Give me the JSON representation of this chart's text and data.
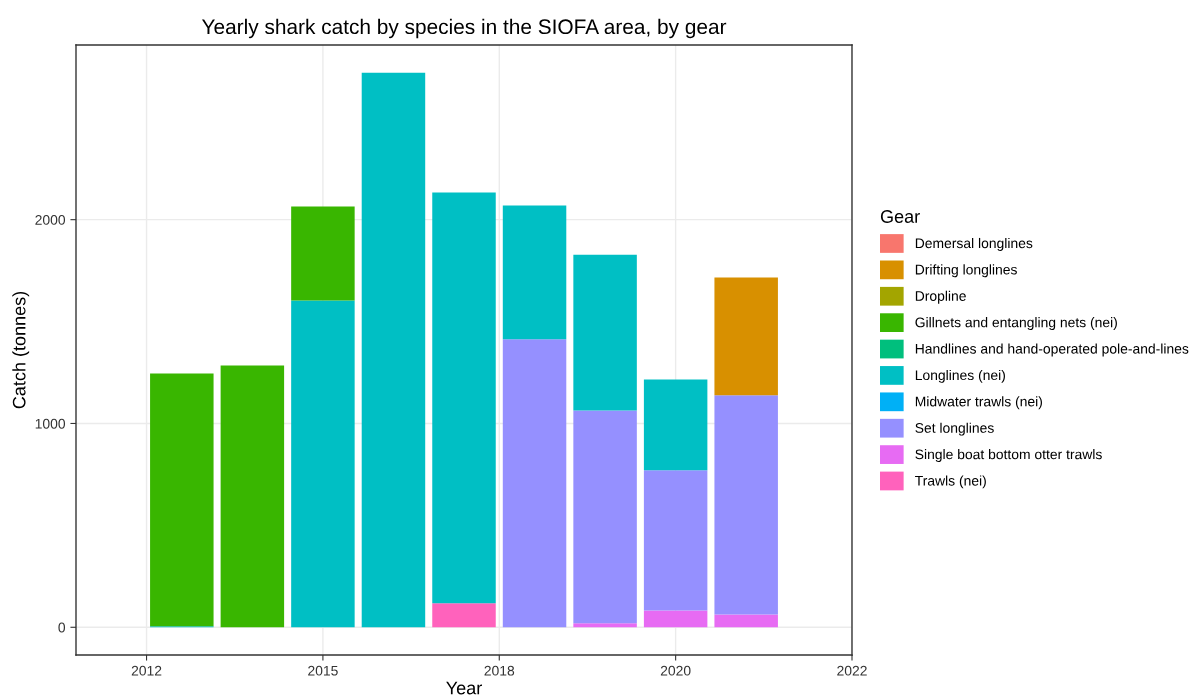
{
  "chart_data": {
    "type": "bar",
    "title": "Yearly shark catch by species in the SIOFA area, by gear",
    "xlabel": "Year",
    "ylabel": "Catch (tonnes)",
    "legend_title": "Gear",
    "x": [
      2013,
      2014,
      2015,
      2016,
      2017,
      2018,
      2019,
      2020,
      2021
    ],
    "stacked": true,
    "series": [
      {
        "name": "Trawls (nei)",
        "color": "#ff62bc",
        "values": [
          null,
          null,
          null,
          null,
          118,
          null,
          null,
          null,
          null
        ]
      },
      {
        "name": "Single boat bottom otter trawls",
        "color": "#e76bf3",
        "values": [
          null,
          null,
          null,
          null,
          null,
          null,
          20,
          82,
          63
        ]
      },
      {
        "name": "Set longlines",
        "color": "#9590ff",
        "values": [
          null,
          null,
          null,
          null,
          null,
          1413,
          1044,
          688,
          1075
        ]
      },
      {
        "name": "Midwater trawls (nei)",
        "color": "#00b0f6",
        "values": [
          null,
          null,
          null,
          null,
          null,
          null,
          null,
          null,
          null
        ]
      },
      {
        "name": "Longlines (nei)",
        "color": "#00bfc4",
        "values": [
          5,
          null,
          1603,
          2721,
          2015,
          657,
          764,
          446,
          null
        ]
      },
      {
        "name": "Handlines and hand-operated pole-and-lines",
        "color": "#00bf7d",
        "values": [
          null,
          null,
          null,
          null,
          null,
          null,
          null,
          null,
          null
        ]
      },
      {
        "name": "Gillnets and entangling nets (nei)",
        "color": "#39b600",
        "values": [
          1240,
          1284,
          462,
          null,
          null,
          null,
          null,
          null,
          null
        ]
      },
      {
        "name": "Dropline",
        "color": "#a3a500",
        "values": [
          null,
          null,
          null,
          null,
          null,
          null,
          null,
          null,
          null
        ]
      },
      {
        "name": "Drifting longlines",
        "color": "#d89000",
        "values": [
          null,
          null,
          null,
          null,
          null,
          null,
          null,
          null,
          578
        ]
      },
      {
        "name": "Demersal longlines",
        "color": "#f8766d",
        "values": [
          null,
          null,
          null,
          null,
          null,
          null,
          null,
          null,
          null
        ]
      }
    ],
    "xlim": [
      2011.5,
      2022.5
    ],
    "xticks": [
      {
        "value": 2012.5,
        "label": "2012"
      },
      2015,
      {
        "value": 2017.5,
        "label": "2018"
      },
      2020,
      {
        "value": 2022.5,
        "label": "2022"
      }
    ],
    "ylim": [
      -136,
      2857
    ],
    "yticks": [
      0,
      1000,
      2000
    ],
    "grid": true,
    "legend": "right"
  }
}
